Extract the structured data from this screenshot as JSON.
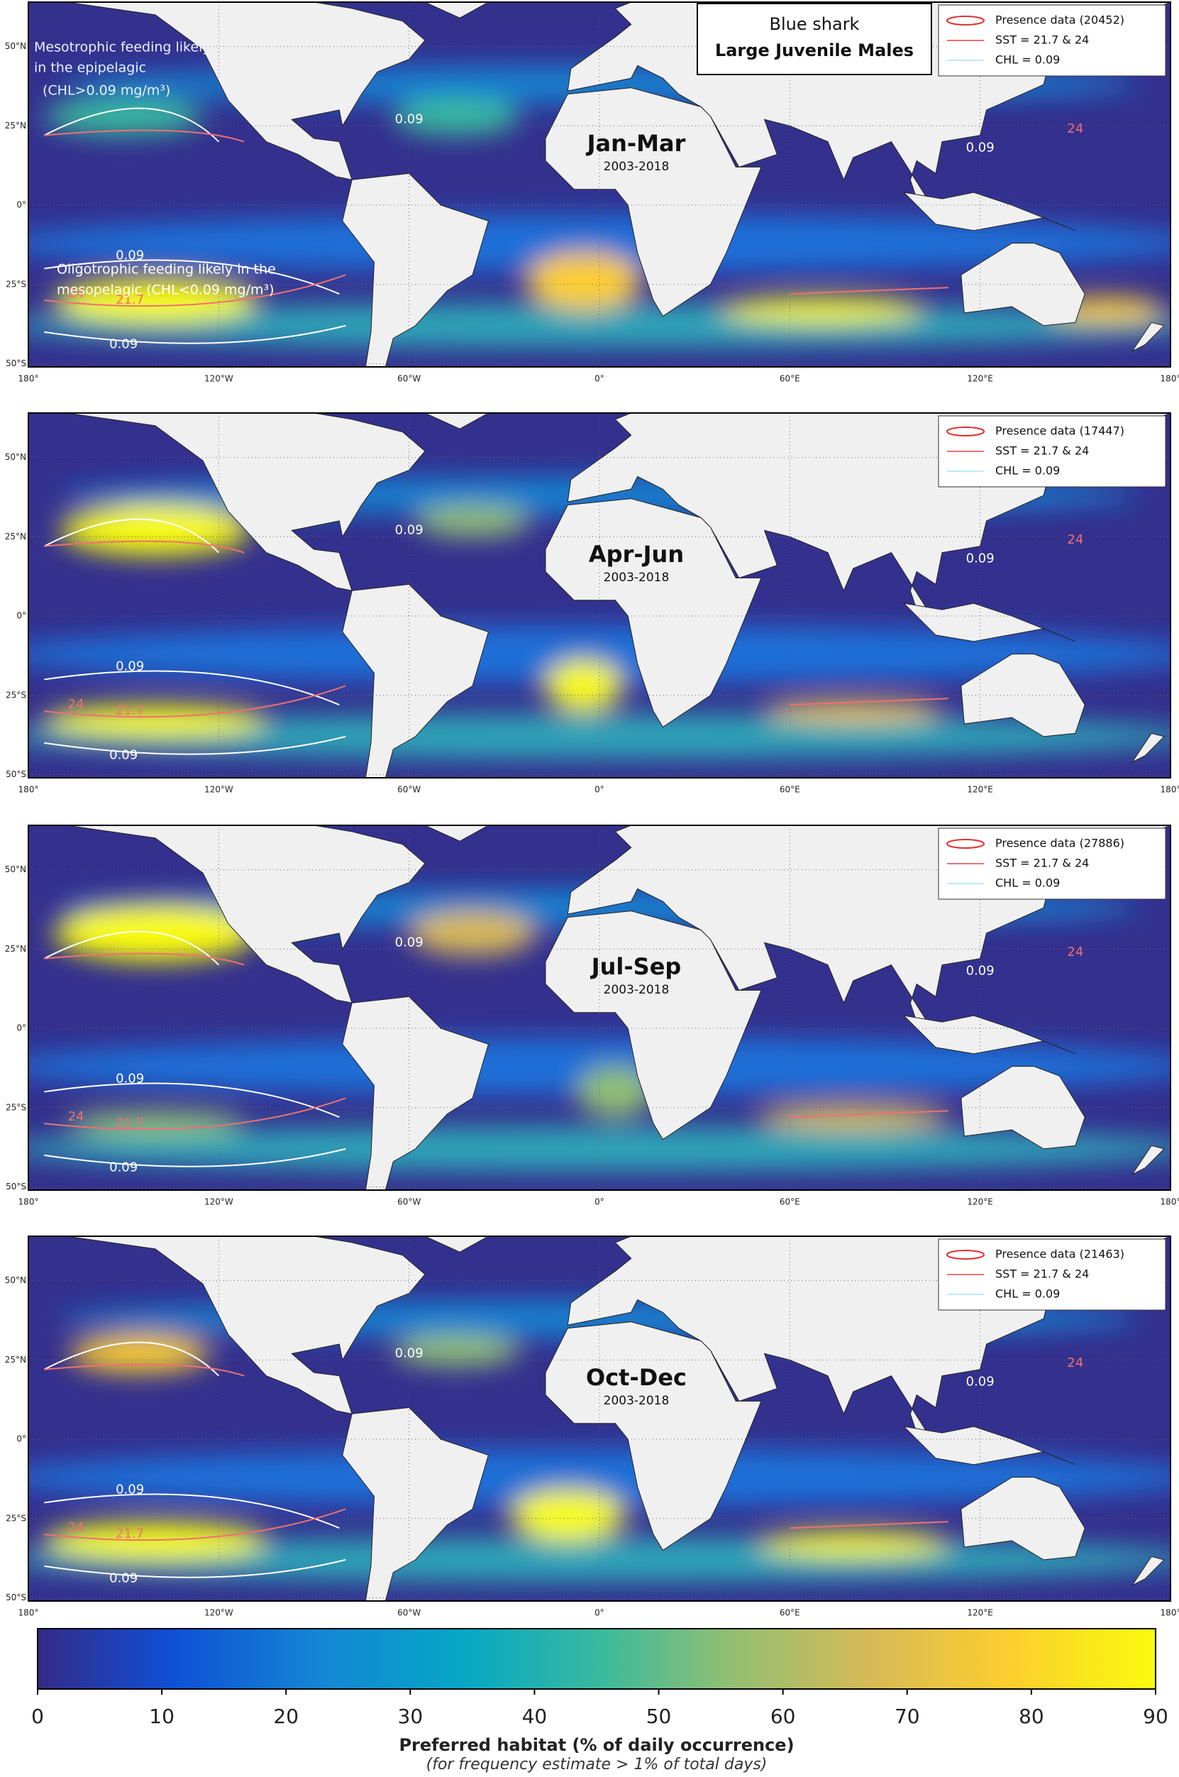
{
  "title": {
    "species": "Blue shark",
    "group": "Large Juvenile Males"
  },
  "annotations": {
    "mesotrophic": [
      "Mesotrophic  feeding likely",
      "in the epipelagic",
      "(CHL>0.09 mg/m³)"
    ],
    "oligotrophic": [
      "Oligotrophic feeding likely in the",
      "mesopelagic (CHL<0.09 mg/m³)"
    ]
  },
  "panels": [
    {
      "season": "Jan-Mar",
      "years": "2003-2018",
      "legend": [
        "Presence data (20452)",
        "SST = 21.7 & 24",
        "CHL = 0.09"
      ]
    },
    {
      "season": "Apr-Jun",
      "years": "2003-2018",
      "legend": [
        "Presence data (17447)",
        "SST = 21.7 & 24",
        "CHL = 0.09"
      ]
    },
    {
      "season": "Jul-Sep",
      "years": "2003-2018",
      "legend": [
        "Presence data (27886)",
        "SST = 21.7 & 24",
        "CHL = 0.09"
      ]
    },
    {
      "season": "Oct-Dec",
      "years": "2003-2018",
      "legend": [
        "Presence data (21463)",
        "SST = 21.7 & 24",
        "CHL = 0.09"
      ]
    }
  ],
  "contour_labels": {
    "chl": "0.09",
    "sst_low": "21.7",
    "sst_high": "24"
  },
  "lat_labels": [
    "50°N",
    "25°N",
    "0°",
    "25°S",
    "50°S"
  ],
  "lon_labels": [
    "180°",
    "120°W",
    "60°W",
    "0°",
    "60°E",
    "120°E",
    "180°"
  ],
  "colorbar": {
    "range": [
      0,
      90
    ],
    "ticks": [
      0,
      10,
      20,
      30,
      40,
      50,
      60,
      70,
      80,
      90
    ],
    "label": "Preferred habitat (% of daily occurrence)",
    "note": "(for frequency estimate > 1% of total days)"
  }
}
